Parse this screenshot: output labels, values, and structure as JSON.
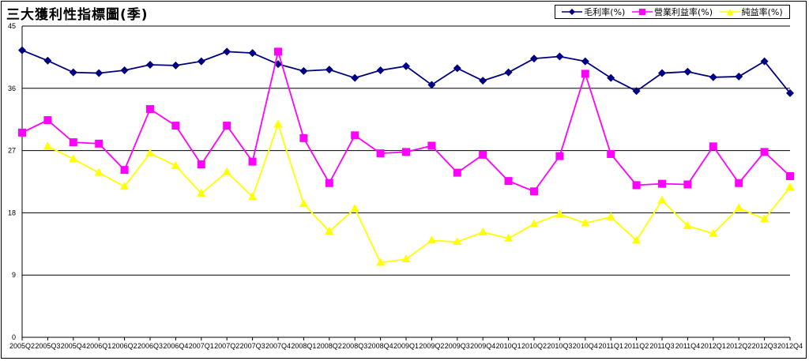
{
  "chart_data": {
    "type": "line",
    "title": "三大獲利性指標圖(季)",
    "xlabel": "",
    "ylabel": "",
    "ylim": [
      0,
      45
    ],
    "yticks": [
      0,
      9,
      18,
      27,
      36,
      45
    ],
    "grid": true,
    "legend_position": "top-right",
    "categories": [
      "2005Q2",
      "2005Q3",
      "2005Q4",
      "2006Q1",
      "2006Q2",
      "2006Q3",
      "2006Q4",
      "2007Q1",
      "2007Q2",
      "2007Q3",
      "2007Q4",
      "2008Q1",
      "2008Q2",
      "2008Q3",
      "2008Q4",
      "2009Q1",
      "2009Q2",
      "2009Q3",
      "2009Q4",
      "2010Q1",
      "2010Q2",
      "2010Q3",
      "2010Q4",
      "2011Q1",
      "2011Q2",
      "2011Q3",
      "2011Q4",
      "2012Q1",
      "2012Q2",
      "2012Q3",
      "2012Q4"
    ],
    "series": [
      {
        "name": "毛利率(%)",
        "color": "#000080",
        "marker": "diamond",
        "values": [
          41.5,
          40.0,
          38.3,
          38.2,
          38.6,
          39.4,
          39.3,
          39.9,
          41.3,
          41.1,
          39.5,
          38.5,
          38.7,
          37.5,
          38.6,
          39.2,
          36.5,
          38.9,
          37.1,
          38.3,
          40.3,
          40.6,
          39.9,
          37.5,
          35.6,
          38.2,
          38.4,
          37.6,
          37.7,
          39.9,
          35.3
        ]
      },
      {
        "name": "營業利益率(%)",
        "color": "#FF00FF",
        "marker": "square",
        "values": [
          29.6,
          31.4,
          28.2,
          28.0,
          24.2,
          33.0,
          30.6,
          25.0,
          30.6,
          25.4,
          41.3,
          28.8,
          22.3,
          29.2,
          26.6,
          26.8,
          27.7,
          23.8,
          26.4,
          22.6,
          21.1,
          26.2,
          38.1,
          26.5,
          22.0,
          22.2,
          22.1,
          27.6,
          22.3,
          26.8,
          23.3
        ]
      },
      {
        "name": "純益率(%)",
        "color": "#FFFF00",
        "marker": "triangle",
        "values": [
          null,
          27.6,
          25.8,
          23.8,
          21.8,
          26.6,
          24.8,
          20.8,
          23.9,
          20.3,
          30.8,
          19.3,
          15.3,
          18.6,
          10.8,
          11.3,
          14.0,
          13.8,
          15.2,
          14.3,
          16.4,
          17.8,
          16.5,
          17.4,
          14.0,
          19.8,
          16.1,
          15.0,
          18.7,
          17.1,
          21.7
        ]
      }
    ]
  }
}
